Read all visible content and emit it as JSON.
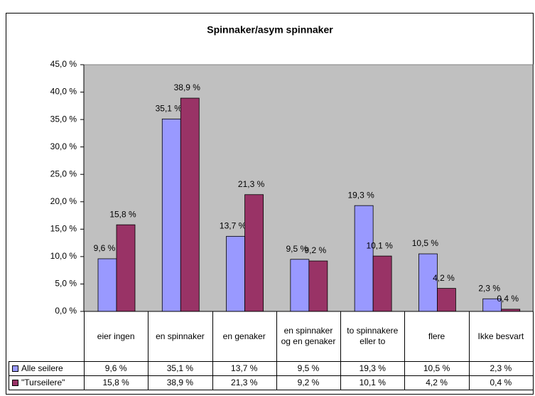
{
  "chart_data": {
    "type": "bar",
    "title": "Spinnaker/asym spinnaker",
    "categories": [
      "eier ingen",
      "en spinnaker",
      "en genaker",
      "en spinnaker og en genaker",
      "to spinnakere eller to",
      "flere",
      "Ikke besvart"
    ],
    "series": [
      {
        "name": "Alle seilere",
        "color": "#9999ff",
        "values": [
          9.6,
          35.1,
          13.7,
          9.5,
          19.3,
          10.5,
          2.3
        ],
        "value_labels": [
          "9,6 %",
          "35,1 %",
          "13,7 %",
          "9,5 %",
          "19,3 %",
          "10,5 %",
          "2,3 %"
        ]
      },
      {
        "name": "\"Turseilere\"",
        "color": "#993366",
        "values": [
          15.8,
          38.9,
          21.3,
          9.2,
          10.1,
          4.2,
          0.4
        ],
        "value_labels": [
          "15,8 %",
          "38,9 %",
          "21,3 %",
          "9,2 %",
          "10,1 %",
          "4,2 %",
          "0,4 %"
        ]
      }
    ],
    "ylim": [
      0,
      45
    ],
    "yticks": [
      {
        "value": 0,
        "label": "0,0 %"
      },
      {
        "value": 5,
        "label": "5,0 %"
      },
      {
        "value": 10,
        "label": "10,0 %"
      },
      {
        "value": 15,
        "label": "15,0 %"
      },
      {
        "value": 20,
        "label": "20,0 %"
      },
      {
        "value": 25,
        "label": "25,0 %"
      },
      {
        "value": 30,
        "label": "30,0 %"
      },
      {
        "value": 35,
        "label": "35,0 %"
      },
      {
        "value": 40,
        "label": "40,0 %"
      },
      {
        "value": 45,
        "label": "45,0 %"
      }
    ],
    "grid": false,
    "plot_background": "#c0c0c0"
  }
}
